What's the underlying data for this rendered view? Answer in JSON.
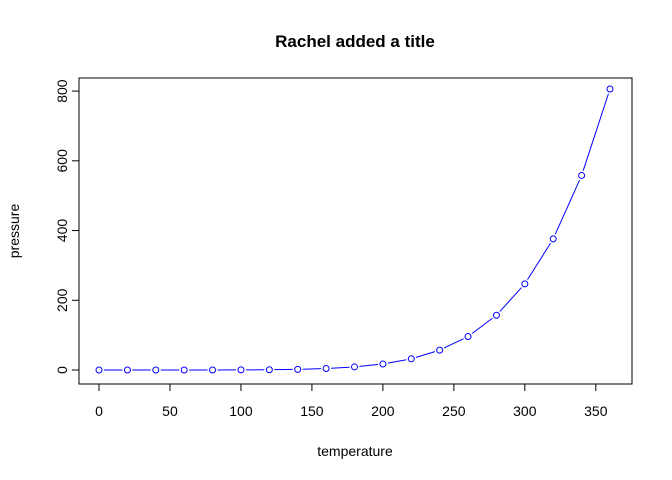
{
  "chart_data": {
    "type": "line",
    "title": "Rachel added a title",
    "xlabel": "temperature",
    "ylabel": "pressure",
    "xlim": [
      0,
      360
    ],
    "ylim": [
      0,
      806
    ],
    "x_ticks": [
      0,
      50,
      100,
      150,
      200,
      250,
      300,
      350
    ],
    "y_ticks": [
      0,
      200,
      400,
      600,
      800
    ],
    "grid": false,
    "series": [
      {
        "color": "#0000ff",
        "marker": "open-circle",
        "x": [
          0,
          20,
          40,
          60,
          80,
          100,
          120,
          140,
          160,
          180,
          200,
          220,
          240,
          260,
          280,
          300,
          320,
          340,
          360
        ],
        "y": [
          0.0002,
          0.0012,
          0.006,
          0.03,
          0.09,
          0.27,
          0.75,
          1.85,
          4.2,
          8.8,
          17.3,
          32.1,
          57,
          96,
          157,
          247,
          376,
          558,
          806
        ]
      }
    ]
  }
}
